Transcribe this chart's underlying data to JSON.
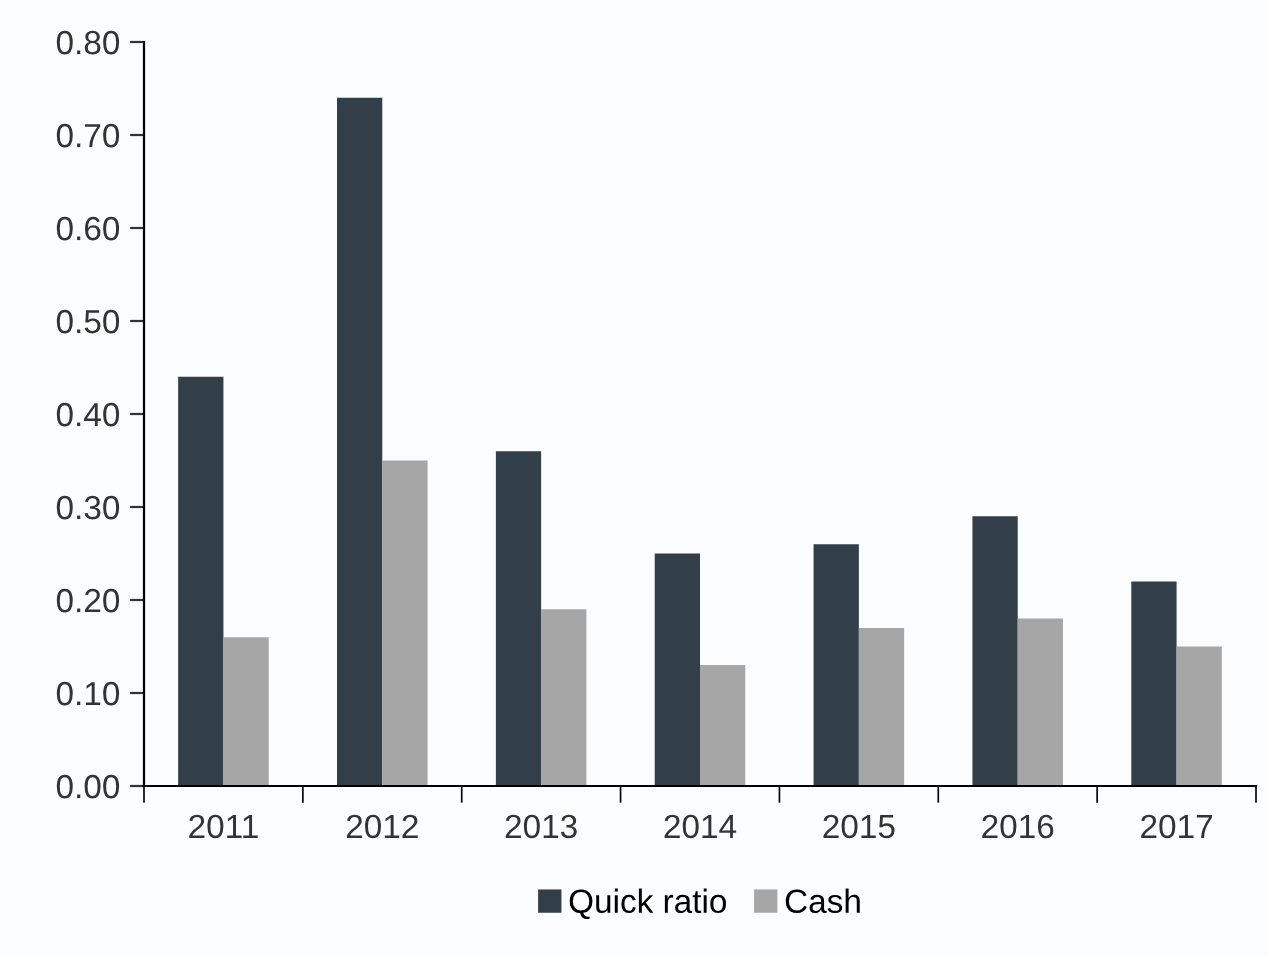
{
  "chart_data": {
    "type": "bar",
    "categories": [
      "2011",
      "2012",
      "2013",
      "2014",
      "2015",
      "2016",
      "2017"
    ],
    "series": [
      {
        "name": "Quick ratio",
        "color": "#333f48",
        "values": [
          0.44,
          0.74,
          0.36,
          0.25,
          0.26,
          0.29,
          0.22
        ]
      },
      {
        "name": "Cash",
        "color": "#a6a6a6",
        "values": [
          0.16,
          0.35,
          0.19,
          0.13,
          0.17,
          0.18,
          0.15
        ]
      }
    ],
    "ylim": [
      0,
      0.8
    ],
    "yticks": [
      {
        "value": 0,
        "label": "0.00"
      },
      {
        "value": 0.1,
        "label": "0.10"
      },
      {
        "value": 0.2,
        "label": "0.20"
      },
      {
        "value": 0.3,
        "label": "0.30"
      },
      {
        "value": 0.4,
        "label": "0.40"
      },
      {
        "value": 0.5,
        "label": "0.50"
      },
      {
        "value": 0.6,
        "label": "0.60"
      },
      {
        "value": 0.7,
        "label": "0.70"
      },
      {
        "value": 0.8,
        "label": "0.80"
      }
    ],
    "grid": false,
    "legend": "bottom"
  }
}
